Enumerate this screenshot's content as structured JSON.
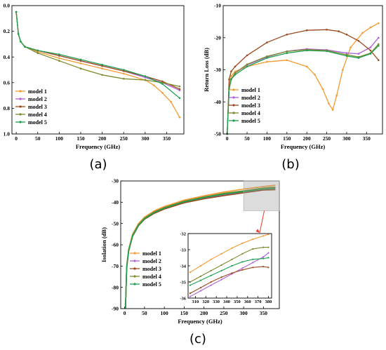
{
  "colors": {
    "model 1": "#f39a32",
    "model 2": "#b061d6",
    "model 3": "#9a4a1f",
    "model 4": "#7b8a2c",
    "model 5": "#1fa050"
  },
  "chart_data": [
    {
      "type": "line",
      "panel_label": "(a)",
      "title": "",
      "xlabel": "Frequency (GHz)",
      "ylabel": "",
      "xlim": [
        -10,
        390
      ],
      "ylim": [
        0.0,
        1.0
      ],
      "y_inverted": true,
      "xticks": [
        0,
        50,
        100,
        150,
        200,
        250,
        300,
        350
      ],
      "yticks": [
        0.0,
        0.2,
        0.4,
        0.6,
        0.8,
        1.0
      ],
      "ytick_labels": [
        "0.0",
        "0.2",
        "0.4",
        "0.6",
        "0.8",
        "1.0"
      ],
      "legend": "bottom-left",
      "series": [
        {
          "name": "model 1",
          "x": [
            0,
            5,
            10,
            20,
            50,
            100,
            150,
            200,
            250,
            300,
            320,
            340,
            360,
            380
          ],
          "y": [
            0.05,
            0.22,
            0.28,
            0.32,
            0.36,
            0.41,
            0.45,
            0.49,
            0.53,
            0.58,
            0.62,
            0.68,
            0.75,
            0.87
          ]
        },
        {
          "name": "model 2",
          "x": [
            0,
            5,
            10,
            20,
            50,
            100,
            150,
            200,
            250,
            300,
            340,
            380
          ],
          "y": [
            0.05,
            0.22,
            0.28,
            0.32,
            0.35,
            0.39,
            0.43,
            0.47,
            0.51,
            0.56,
            0.6,
            0.66
          ]
        },
        {
          "name": "model 3",
          "x": [
            0,
            5,
            10,
            20,
            50,
            100,
            150,
            200,
            250,
            300,
            340,
            380
          ],
          "y": [
            0.05,
            0.22,
            0.28,
            0.32,
            0.35,
            0.39,
            0.43,
            0.47,
            0.51,
            0.55,
            0.59,
            0.65
          ]
        },
        {
          "name": "model 4",
          "x": [
            0,
            5,
            10,
            20,
            50,
            100,
            150,
            200,
            250,
            300,
            340,
            380
          ],
          "y": [
            0.05,
            0.22,
            0.28,
            0.32,
            0.37,
            0.43,
            0.49,
            0.54,
            0.57,
            0.58,
            0.6,
            0.63
          ]
        },
        {
          "name": "model 5",
          "x": [
            0,
            5,
            10,
            20,
            50,
            100,
            150,
            200,
            250,
            300,
            340,
            380
          ],
          "y": [
            0.05,
            0.22,
            0.28,
            0.32,
            0.35,
            0.38,
            0.42,
            0.46,
            0.5,
            0.55,
            0.61,
            0.72
          ]
        }
      ]
    },
    {
      "type": "line",
      "panel_label": "(b)",
      "title": "",
      "xlabel": "Frequency (GHz)",
      "ylabel": "Return Loss (dB)",
      "xlim": [
        -10,
        390
      ],
      "ylim": [
        -50,
        -10
      ],
      "xticks": [
        0,
        50,
        100,
        150,
        200,
        250,
        300,
        350
      ],
      "yticks": [
        -50,
        -40,
        -30,
        -20,
        -10
      ],
      "ytick_labels": [
        "-50",
        "-40",
        "-30",
        "-20",
        "-10"
      ],
      "legend": "lower-left",
      "series": [
        {
          "name": "model 1",
          "x": [
            0,
            5,
            10,
            20,
            50,
            100,
            150,
            200,
            220,
            240,
            255,
            265,
            275,
            290,
            310,
            340,
            360,
            380
          ],
          "y": [
            -50,
            -35,
            -32,
            -30.5,
            -29,
            -27.5,
            -27,
            -29,
            -31.5,
            -36,
            -40.5,
            -42.5,
            -38,
            -30,
            -23,
            -18.5,
            -16.8,
            -15.5
          ]
        },
        {
          "name": "model 2",
          "x": [
            0,
            5,
            10,
            20,
            50,
            100,
            150,
            200,
            250,
            300,
            330,
            360,
            380
          ],
          "y": [
            -50,
            -36,
            -33,
            -31,
            -28.5,
            -26,
            -24.2,
            -23.5,
            -23.8,
            -24.8,
            -25,
            -23,
            -20
          ]
        },
        {
          "name": "model 3",
          "x": [
            0,
            5,
            10,
            20,
            50,
            100,
            150,
            200,
            250,
            280,
            300,
            330,
            360,
            380
          ],
          "y": [
            -50,
            -33,
            -30.5,
            -29,
            -25.5,
            -21.5,
            -19,
            -17.7,
            -17.5,
            -18,
            -19,
            -21,
            -24,
            -27
          ]
        },
        {
          "name": "model 4",
          "x": [
            0,
            5,
            10,
            20,
            50,
            100,
            150,
            200,
            250,
            300,
            330,
            360,
            380
          ],
          "y": [
            -50,
            -36,
            -33,
            -31,
            -28.3,
            -25.8,
            -24.3,
            -23.7,
            -24,
            -25.3,
            -26,
            -24.8,
            -22
          ]
        },
        {
          "name": "model 5",
          "x": [
            0,
            5,
            10,
            20,
            50,
            100,
            150,
            200,
            250,
            300,
            330,
            360,
            380
          ],
          "y": [
            -50,
            -36,
            -33,
            -31.5,
            -29,
            -26.3,
            -24.8,
            -24,
            -24.2,
            -25.7,
            -26.3,
            -25,
            -22.5
          ]
        }
      ]
    },
    {
      "type": "line",
      "panel_label": "(c)",
      "title": "",
      "xlabel": "Frequency (GHz)",
      "ylabel": "Isolation (dB)",
      "xlim": [
        -10,
        390
      ],
      "ylim": [
        -90,
        -30
      ],
      "xticks": [
        0,
        50,
        100,
        150,
        200,
        250,
        300,
        350
      ],
      "yticks": [
        -90,
        -80,
        -70,
        -60,
        -50,
        -40,
        -30
      ],
      "ytick_labels": [
        "-90",
        "-80",
        "-70",
        "-60",
        "-50",
        "-40",
        "-30"
      ],
      "legend": "center-left",
      "series": [
        {
          "name": "model 1",
          "x": [
            2,
            5,
            10,
            20,
            35,
            50,
            75,
            100,
            150,
            200,
            250,
            300,
            350,
            380
          ],
          "y": [
            -90,
            -70,
            -62,
            -55,
            -50,
            -47,
            -44,
            -42,
            -39,
            -37,
            -35.2,
            -33.8,
            -32.6,
            -32.0
          ]
        },
        {
          "name": "model 2",
          "x": [
            2,
            5,
            10,
            20,
            35,
            50,
            75,
            100,
            150,
            200,
            250,
            300,
            350,
            380
          ],
          "y": [
            -90,
            -71,
            -63,
            -56,
            -51,
            -48,
            -45,
            -43,
            -40,
            -38,
            -36.5,
            -35.3,
            -34.0,
            -33.0
          ]
        },
        {
          "name": "model 3",
          "x": [
            2,
            5,
            10,
            20,
            35,
            50,
            75,
            100,
            150,
            200,
            250,
            300,
            350,
            380
          ],
          "y": [
            -90,
            -71,
            -63,
            -56,
            -51,
            -48,
            -45.2,
            -43.2,
            -40.3,
            -38.4,
            -36.9,
            -35.6,
            -34.3,
            -34.1
          ]
        },
        {
          "name": "model 4",
          "x": [
            2,
            5,
            10,
            20,
            35,
            50,
            75,
            100,
            150,
            200,
            250,
            300,
            350,
            380
          ],
          "y": [
            -90,
            -70.5,
            -62.5,
            -55.5,
            -50.5,
            -47.5,
            -44.5,
            -42.5,
            -39.5,
            -37.5,
            -35.8,
            -34.6,
            -33.3,
            -32.9
          ]
        },
        {
          "name": "model 5",
          "x": [
            2,
            5,
            10,
            20,
            35,
            50,
            75,
            100,
            150,
            200,
            250,
            300,
            350,
            380
          ],
          "y": [
            -90,
            -70.8,
            -62.8,
            -55.8,
            -50.8,
            -47.8,
            -44.8,
            -42.8,
            -39.8,
            -37.8,
            -36.2,
            -35.0,
            -33.8,
            -33.5
          ]
        }
      ],
      "inset": {
        "xlim": [
          303,
          383
        ],
        "ylim": [
          -36,
          -32
        ],
        "xticks": [
          310,
          320,
          330,
          340,
          350,
          360,
          370,
          380
        ],
        "yticks": [
          -36,
          -35,
          -34,
          -33,
          -32
        ],
        "ytick_labels": [
          "-36",
          "-35",
          "-34",
          "-33",
          "-32"
        ],
        "series": [
          {
            "name": "model 1",
            "x": [
              305,
              315,
              325,
              335,
              345,
              355,
              365,
              375,
              380
            ],
            "y": [
              -34.4,
              -34.0,
              -33.6,
              -33.25,
              -32.9,
              -32.6,
              -32.35,
              -32.15,
              -32.05
            ]
          },
          {
            "name": "model 2",
            "x": [
              305,
              315,
              325,
              335,
              345,
              355,
              365,
              375,
              380
            ],
            "y": [
              -35.9,
              -35.55,
              -35.2,
              -34.85,
              -34.5,
              -34.15,
              -33.8,
              -33.45,
              -33.2
            ]
          },
          {
            "name": "model 3",
            "x": [
              305,
              315,
              325,
              335,
              345,
              355,
              365,
              375,
              380
            ],
            "y": [
              -35.7,
              -35.35,
              -35.0,
              -34.7,
              -34.45,
              -34.25,
              -34.1,
              -34.05,
              -34.1
            ]
          },
          {
            "name": "model 4",
            "x": [
              305,
              315,
              325,
              335,
              345,
              355,
              365,
              375,
              380
            ],
            "y": [
              -35.0,
              -34.65,
              -34.3,
              -33.95,
              -33.6,
              -33.25,
              -32.95,
              -32.85,
              -32.85
            ]
          },
          {
            "name": "model 5",
            "x": [
              305,
              315,
              325,
              335,
              345,
              355,
              365,
              375,
              380
            ],
            "y": [
              -35.2,
              -34.9,
              -34.6,
              -34.3,
              -34.0,
              -33.75,
              -33.6,
              -33.55,
              -33.5
            ]
          }
        ]
      }
    }
  ]
}
